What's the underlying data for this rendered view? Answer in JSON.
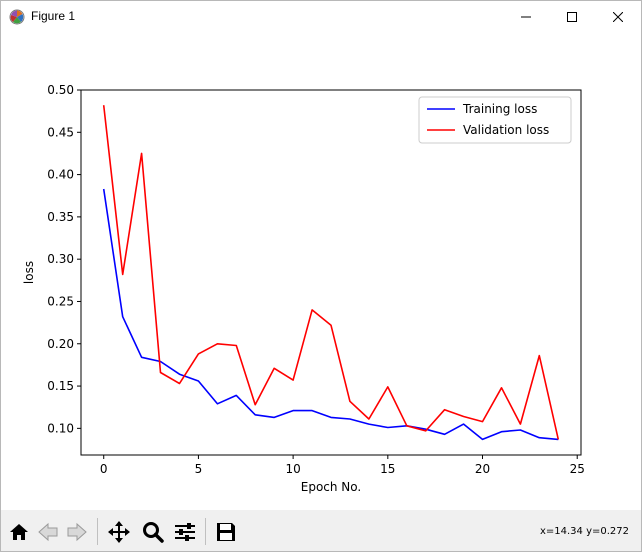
{
  "window": {
    "title": "Figure 1"
  },
  "toolbar": {
    "coords": "x=14.34 y=0.272"
  },
  "icons": {
    "app": "matplotlib-icon",
    "minimize": "minimize-icon",
    "maximize": "maximize-icon",
    "close": "close-icon",
    "home": "home-icon",
    "back": "back-arrow-icon",
    "forward": "forward-arrow-icon",
    "pan": "pan-icon",
    "zoom": "zoom-icon",
    "configure": "configure-subplots-icon",
    "save": "save-icon"
  },
  "chart_data": {
    "type": "line",
    "title": "",
    "xlabel": "Epoch No.",
    "ylabel": "loss",
    "xlim": [
      -1.2,
      25.2
    ],
    "ylim": [
      0.0685,
      0.5
    ],
    "xticks": [
      0,
      5,
      10,
      15,
      20,
      25
    ],
    "yticks": [
      0.1,
      0.15,
      0.2,
      0.25,
      0.3,
      0.35,
      0.4,
      0.45,
      0.5
    ],
    "xtick_labels": [
      "0",
      "5",
      "10",
      "15",
      "20",
      "25"
    ],
    "ytick_labels": [
      "0.10",
      "0.15",
      "0.20",
      "0.25",
      "0.30",
      "0.35",
      "0.40",
      "0.45",
      "0.50"
    ],
    "grid": false,
    "legend_position": "top-right",
    "x": [
      0,
      1,
      2,
      3,
      4,
      5,
      6,
      7,
      8,
      9,
      10,
      11,
      12,
      13,
      14,
      15,
      16,
      17,
      18,
      19,
      20,
      21,
      22,
      23,
      24
    ],
    "series": [
      {
        "name": "Training loss",
        "color": "#0000ff",
        "values": [
          0.383,
          0.232,
          0.184,
          0.179,
          0.164,
          0.156,
          0.129,
          0.139,
          0.116,
          0.113,
          0.121,
          0.121,
          0.113,
          0.111,
          0.105,
          0.101,
          0.103,
          0.099,
          0.093,
          0.105,
          0.087,
          0.096,
          0.098,
          0.089,
          0.087
        ]
      },
      {
        "name": "Validation loss",
        "color": "#ff0000",
        "values": [
          0.482,
          0.282,
          0.425,
          0.166,
          0.153,
          0.188,
          0.2,
          0.198,
          0.128,
          0.171,
          0.157,
          0.24,
          0.222,
          0.132,
          0.111,
          0.149,
          0.103,
          0.097,
          0.122,
          0.114,
          0.108,
          0.148,
          0.105,
          0.186,
          0.087
        ]
      }
    ]
  }
}
